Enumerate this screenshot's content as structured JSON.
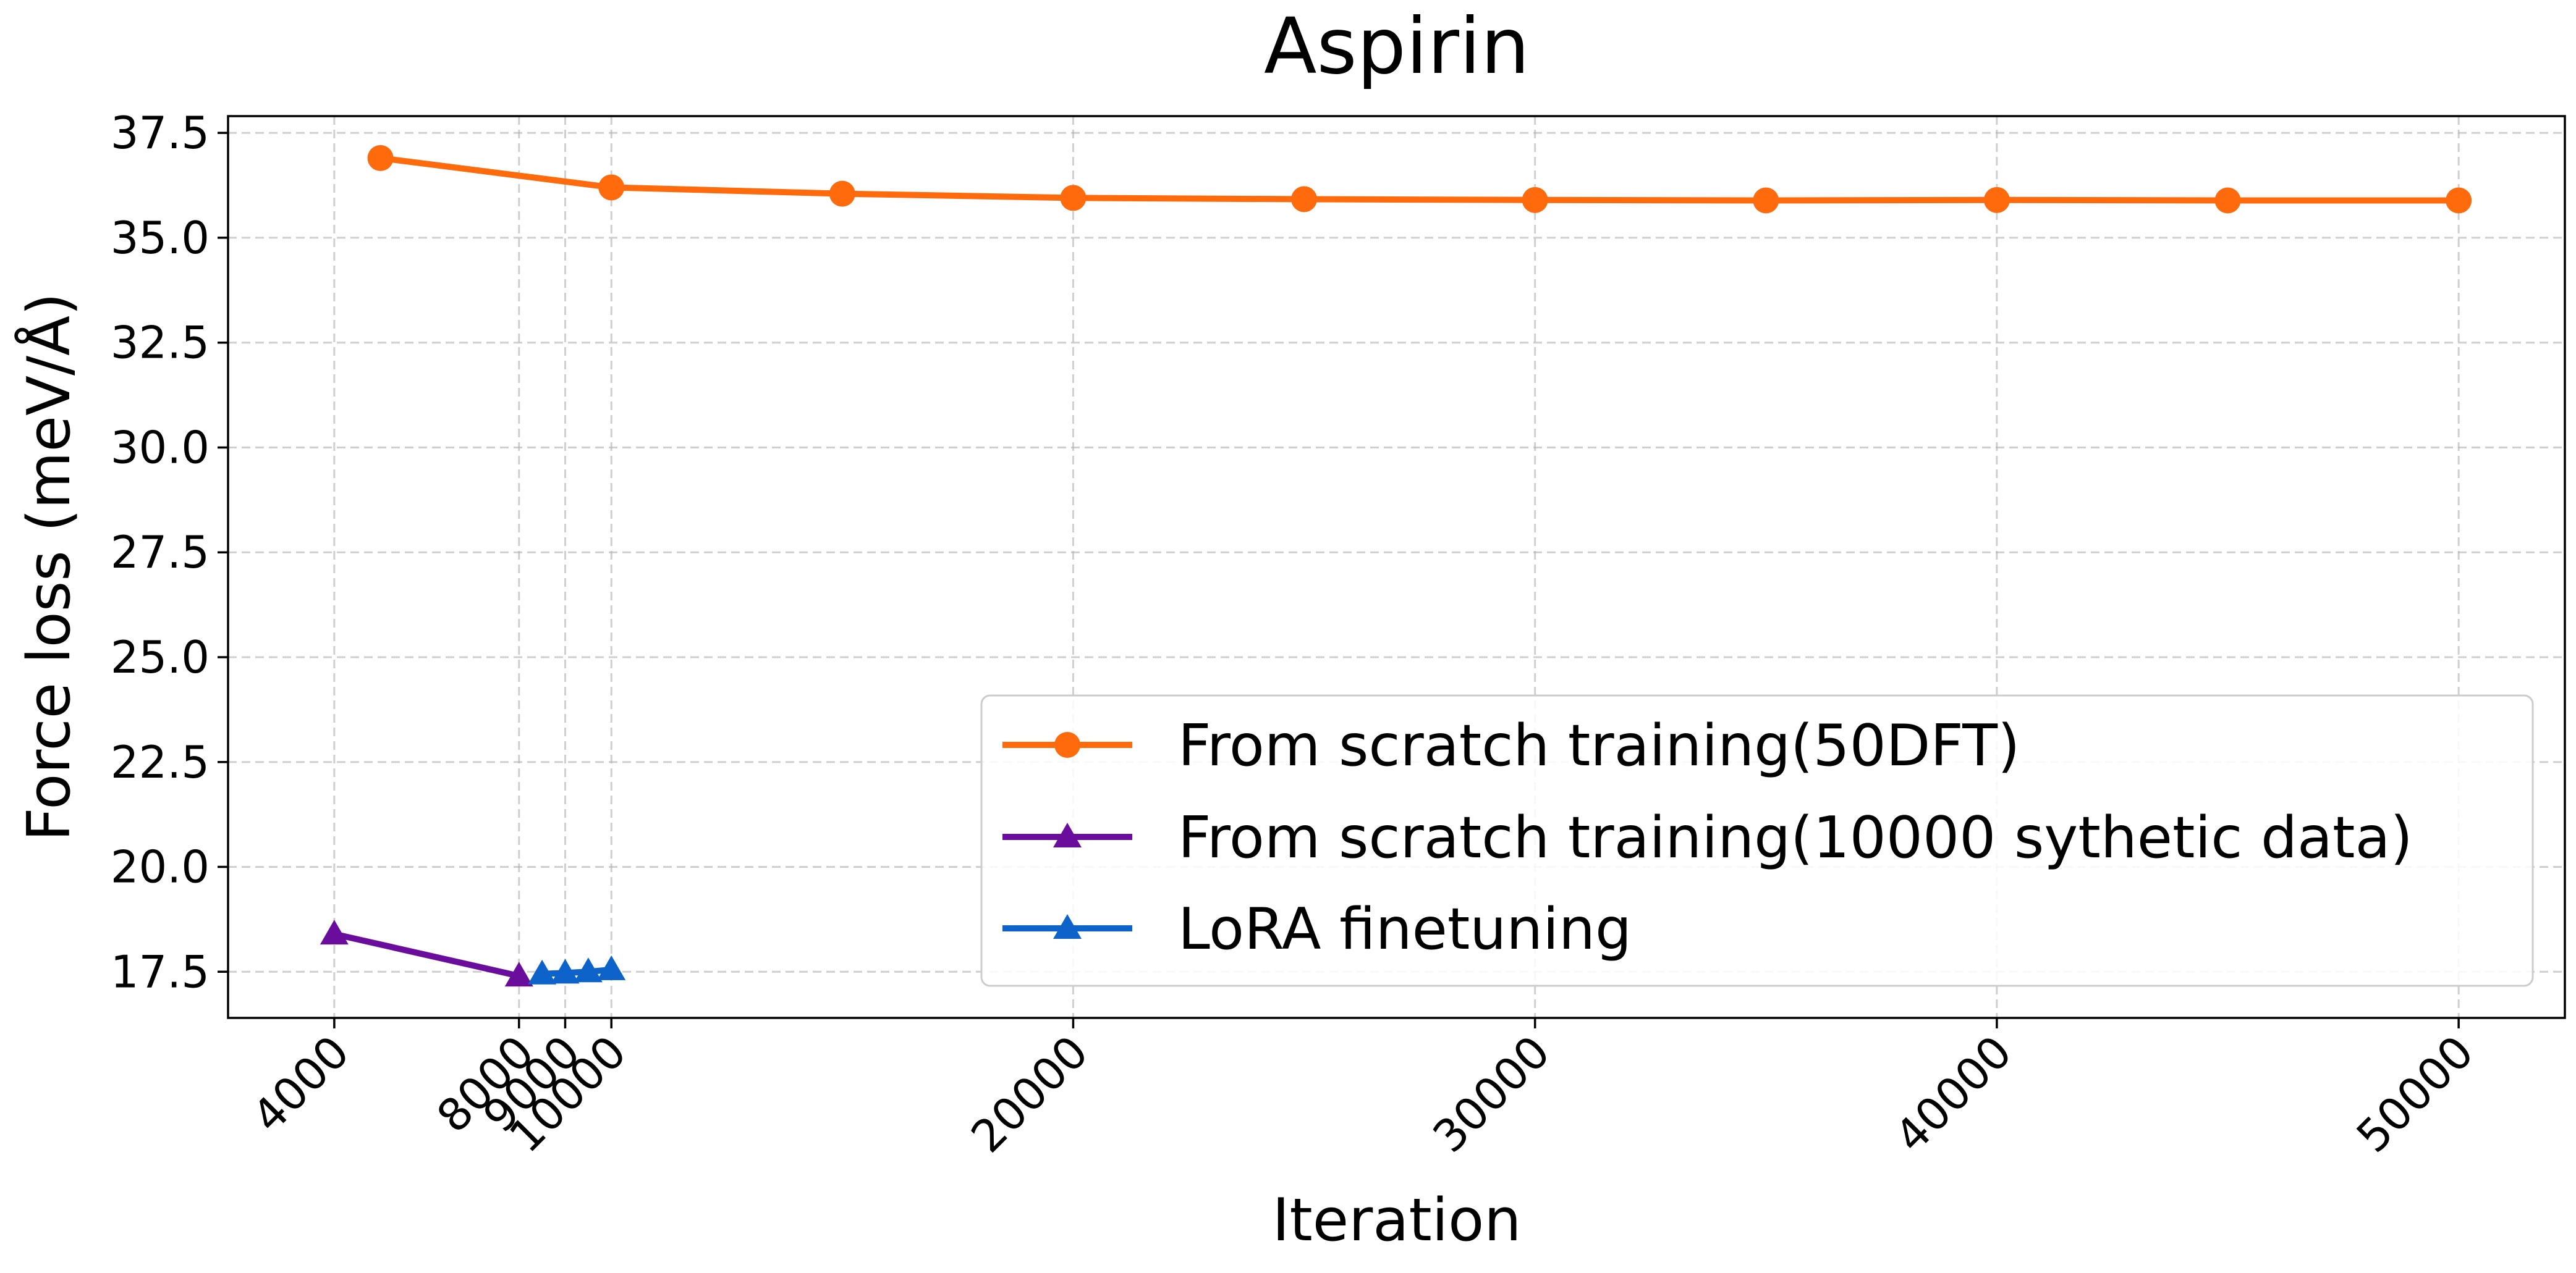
{
  "chart_data": {
    "type": "line",
    "title": "Aspirin",
    "xlabel": "Iteration",
    "ylabel": "Force loss (meV/Å)",
    "xlim": [
      1700,
      52300
    ],
    "ylim": [
      16.4,
      37.9
    ],
    "xticks": [
      4000,
      8000,
      9000,
      10000,
      20000,
      30000,
      40000,
      50000
    ],
    "xtick_labels": [
      "4000",
      "8000",
      "9000",
      "10000",
      "20000",
      "30000",
      "40000",
      "50000"
    ],
    "yticks": [
      17.5,
      20.0,
      22.5,
      25.0,
      27.5,
      30.0,
      32.5,
      35.0,
      37.5
    ],
    "ytick_labels": [
      "17.5",
      "20.0",
      "22.5",
      "25.0",
      "27.5",
      "30.0",
      "32.5",
      "35.0",
      "37.5"
    ],
    "grid": true,
    "legend_position": "lower-right",
    "series": [
      {
        "name": "From scratch training(50DFT)",
        "color": "#ff6a0c",
        "marker": "circle",
        "x": [
          5000,
          10000,
          15000,
          20000,
          25000,
          30000,
          35000,
          40000,
          45000,
          50000
        ],
        "y": [
          36.9,
          36.2,
          36.05,
          35.95,
          35.92,
          35.9,
          35.89,
          35.9,
          35.89,
          35.89
        ]
      },
      {
        "name": "From scratch training(10000 sythetic data)",
        "color": "#6a0d9c",
        "marker": "triangle",
        "x": [
          4000,
          8000
        ],
        "y": [
          18.4,
          17.4
        ]
      },
      {
        "name": "LoRA finetuning",
        "color": "#0d63c9",
        "marker": "triangle",
        "x": [
          8500,
          9000,
          9500,
          10000
        ],
        "y": [
          17.45,
          17.47,
          17.5,
          17.55
        ]
      }
    ]
  }
}
